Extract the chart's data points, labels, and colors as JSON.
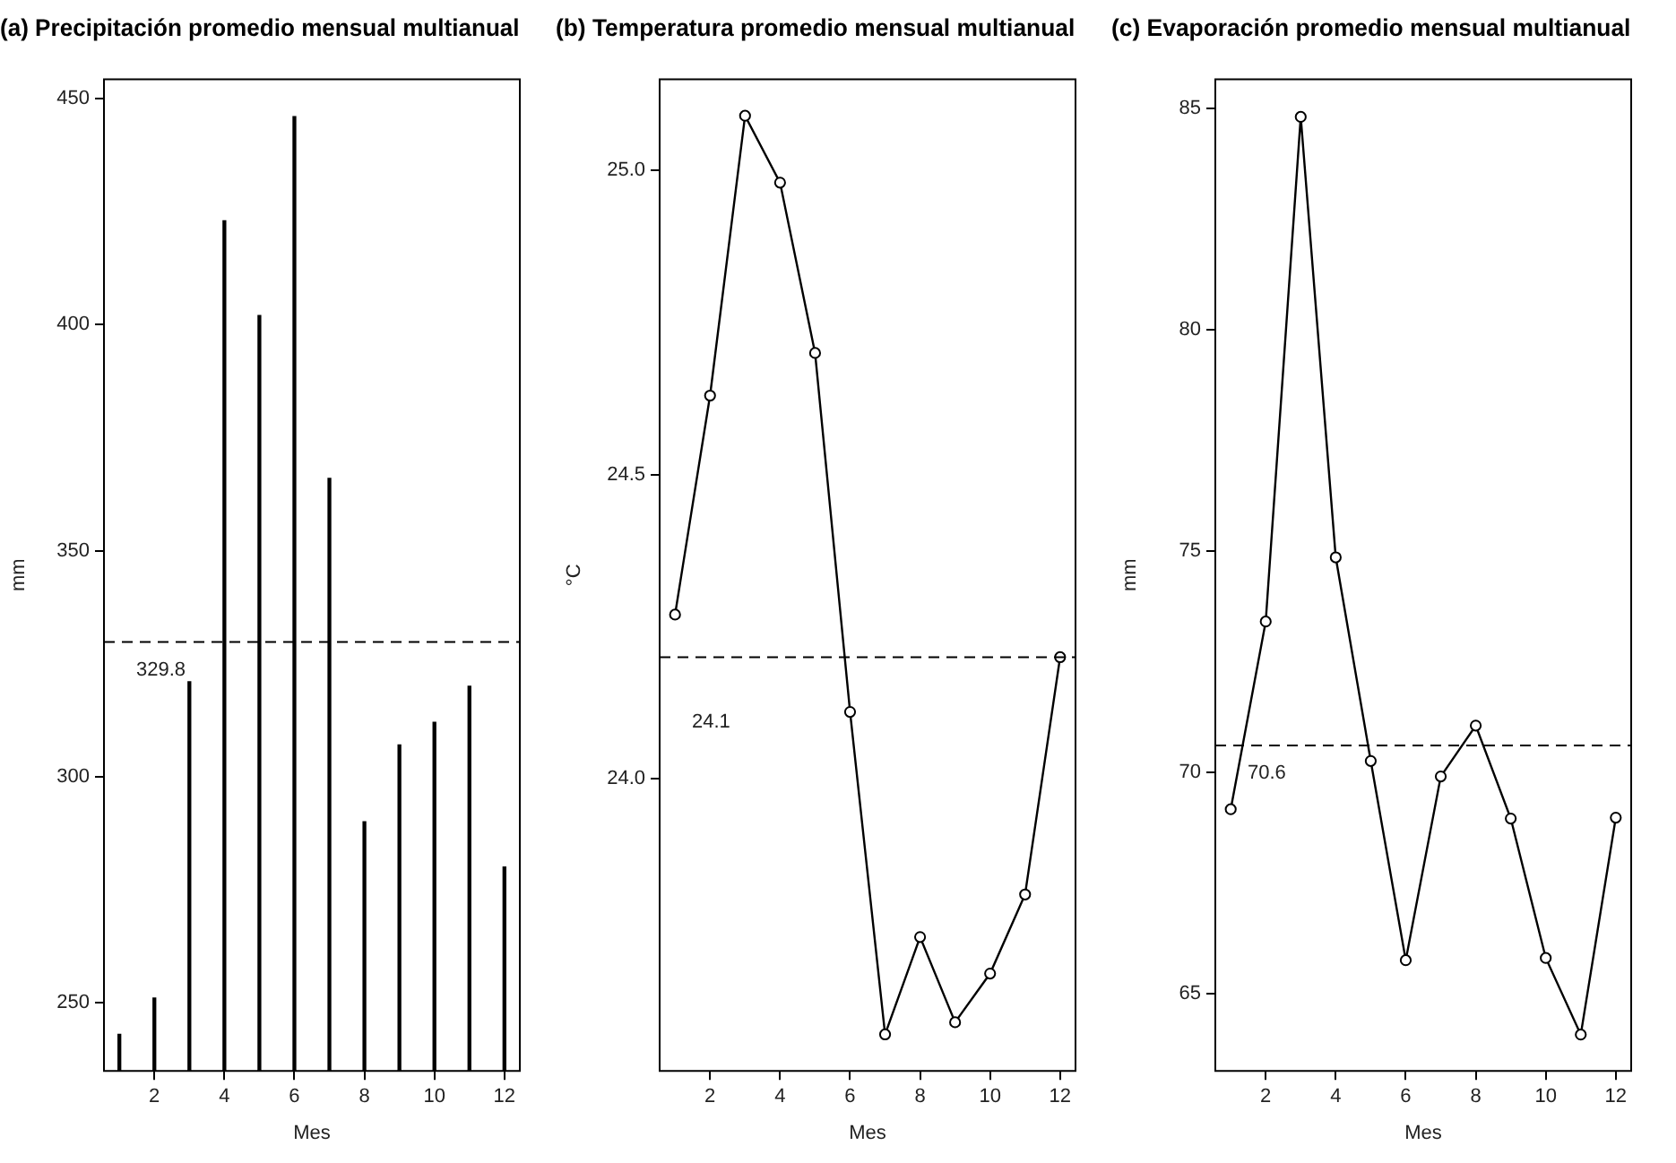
{
  "chart_data": [
    {
      "type": "bar",
      "title": "(a) Precipitación promedio mensual multianual",
      "xlabel": "Mes",
      "ylabel": "mm",
      "color": "#000000",
      "x": [
        1,
        2,
        3,
        4,
        5,
        6,
        7,
        8,
        9,
        10,
        11,
        12
      ],
      "values": [
        243,
        251,
        321,
        423,
        402,
        446,
        366,
        290,
        307,
        312,
        320,
        280
      ],
      "xlim": [
        0.56,
        12.44
      ],
      "xticks": [
        2,
        4,
        6,
        8,
        10,
        12
      ],
      "ylim": [
        234.9,
        454.3
      ],
      "yticks": [
        250,
        300,
        350,
        400,
        450
      ],
      "ref_lines": [
        {
          "axis": "y",
          "value": 329.8,
          "label": "329.8",
          "line_style": "dashed"
        }
      ]
    },
    {
      "type": "line",
      "title": "(b) Temperatura promedio mensual multianual",
      "xlabel": "Mes",
      "ylabel": "°C",
      "color": "#000000",
      "marker": "circle",
      "x": [
        1,
        2,
        3,
        4,
        5,
        6,
        7,
        8,
        9,
        10,
        11,
        12
      ],
      "values": [
        24.27,
        24.63,
        25.09,
        24.98,
        24.7,
        24.11,
        23.58,
        23.74,
        23.6,
        23.68,
        23.81,
        24.2
      ],
      "xlim": [
        0.56,
        12.44
      ],
      "xticks": [
        2,
        4,
        6,
        8,
        10,
        12
      ],
      "ylim": [
        23.52,
        25.15
      ],
      "yticks": [
        {
          "value": 24,
          "label": "24.0"
        },
        24.5,
        {
          "value": 25,
          "label": "25.0"
        }
      ],
      "ref_lines": [
        {
          "axis": "y",
          "value": 24.2,
          "line_style": "dashed"
        }
      ],
      "annotations": [
        "24.1"
      ]
    },
    {
      "type": "line",
      "title": "(c) Evaporación promedio mensual multianual",
      "xlabel": "Mes",
      "ylabel": "mm",
      "color": "#000000",
      "marker": "circle",
      "x": [
        1,
        2,
        3,
        4,
        5,
        6,
        7,
        8,
        9,
        10,
        11,
        12
      ],
      "values": [
        69.16,
        73.4,
        84.8,
        74.85,
        70.25,
        65.75,
        69.9,
        71.05,
        68.95,
        65.8,
        64.07,
        68.97
      ],
      "xlim": [
        0.56,
        12.44
      ],
      "xticks": [
        2,
        4,
        6,
        8,
        10,
        12
      ],
      "ylim": [
        63.25,
        85.65
      ],
      "yticks": [
        65,
        70,
        75,
        80,
        85
      ],
      "ref_lines": [
        {
          "axis": "y",
          "value": 70.6,
          "label": "70.6",
          "line_style": "dashed"
        }
      ]
    }
  ]
}
